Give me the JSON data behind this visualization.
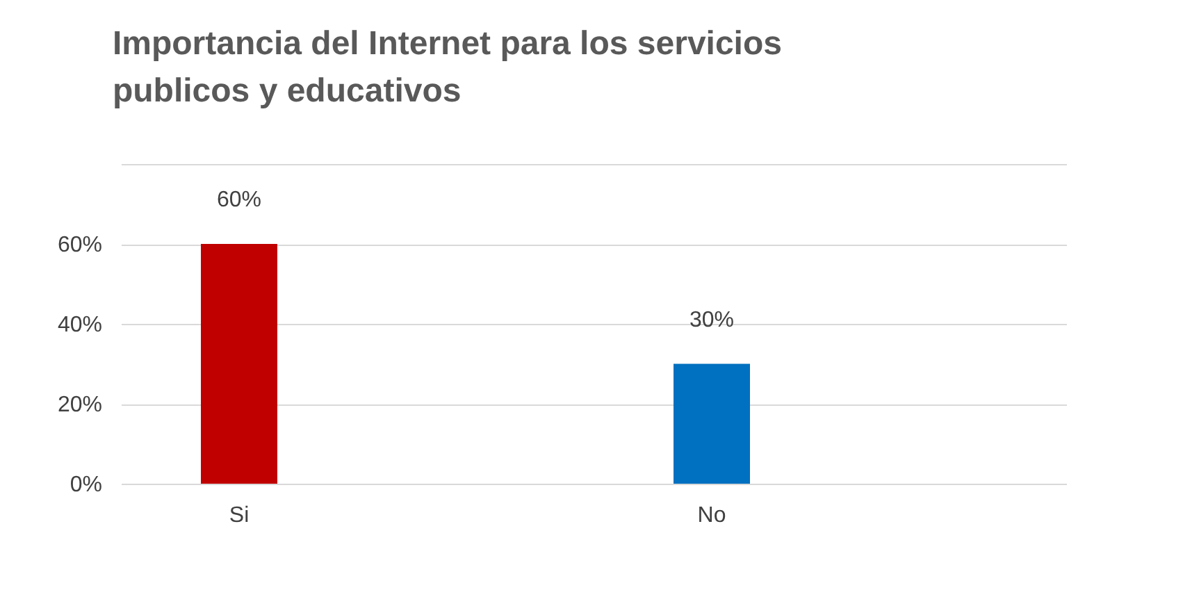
{
  "chart_data": {
    "type": "bar",
    "title": "Importancia del Internet para los servicios publicos y educativos",
    "categories": [
      "Si",
      "No"
    ],
    "values": [
      60,
      30
    ],
    "colors": [
      "#c00000",
      "#0070c0"
    ],
    "value_labels": [
      "60%",
      "30%"
    ],
    "ylim": [
      0,
      80
    ],
    "yticks": [
      {
        "value": 0,
        "label": "0%"
      },
      {
        "value": 20,
        "label": "20%"
      },
      {
        "value": 40,
        "label": "40%"
      },
      {
        "value": 60,
        "label": "60%"
      },
      {
        "value": 80,
        "label": null
      }
    ],
    "grid": true
  }
}
